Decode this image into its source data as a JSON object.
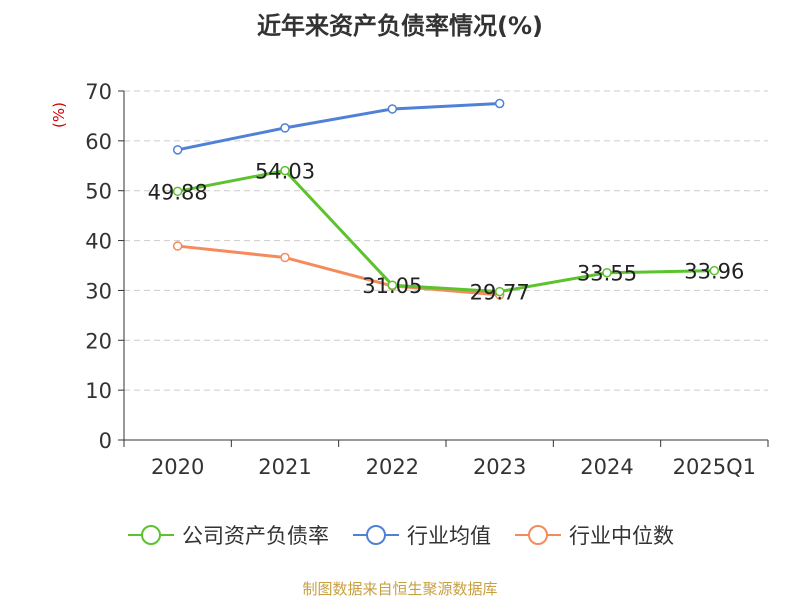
{
  "chart_data": {
    "type": "line",
    "title": "近年来资产负债率情况(%)",
    "ylabel": "(%)",
    "xlabel": "",
    "categories": [
      "2020",
      "2021",
      "2022",
      "2023",
      "2024",
      "2025Q1"
    ],
    "ylim": [
      0,
      70
    ],
    "yticks": [
      0,
      10,
      20,
      30,
      40,
      50,
      60,
      70
    ],
    "grid": "horizontal dashed",
    "legend_position": "bottom",
    "series": [
      {
        "name": "公司资产负债率",
        "color": "#5cc22e",
        "values": [
          49.88,
          54.03,
          31.05,
          29.77,
          33.55,
          33.96
        ],
        "labels": [
          "49.88",
          "54.03",
          "31.05",
          "29.77",
          "33.55",
          "33.96"
        ]
      },
      {
        "name": "行业均值",
        "color": "#4f81d6",
        "values": [
          58.2,
          62.6,
          66.4,
          67.5,
          null,
          null
        ]
      },
      {
        "name": "行业中位数",
        "color": "#f58b5c",
        "values": [
          38.9,
          36.6,
          30.9,
          29.1,
          null,
          null
        ]
      }
    ]
  },
  "footer": {
    "source": "制图数据来自恒生聚源数据库"
  }
}
